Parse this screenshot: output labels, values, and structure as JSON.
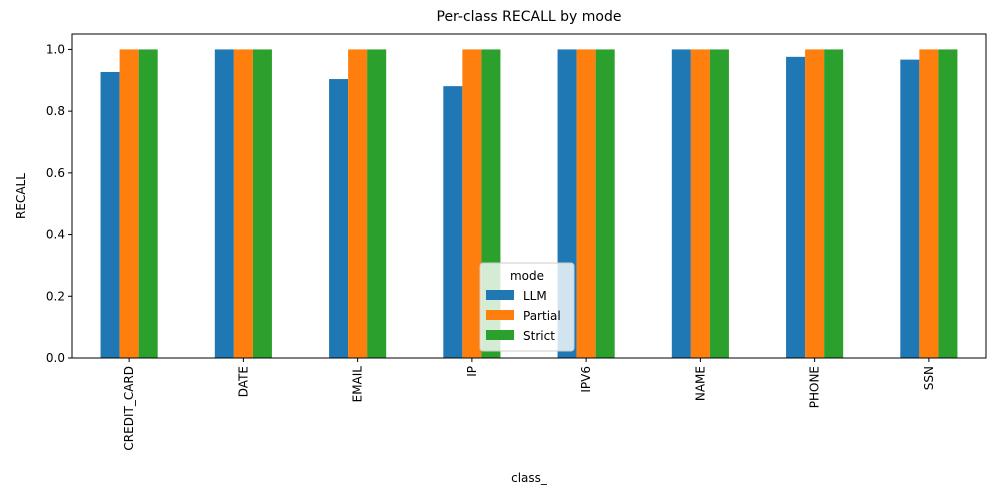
{
  "chart_data": {
    "type": "bar",
    "title": "Per-class RECALL by mode",
    "xlabel": "class_",
    "ylabel": "RECALL",
    "ylim": [
      0,
      1.05
    ],
    "yticks": [
      "0.0",
      "0.2",
      "0.4",
      "0.6",
      "0.8",
      "1.0"
    ],
    "categories": [
      "CREDIT_CARD",
      "DATE",
      "EMAIL",
      "IP",
      "IPV6",
      "NAME",
      "PHONE",
      "SSN"
    ],
    "legend_title": "mode",
    "legend_position": "bottom-center",
    "grid": false,
    "series": [
      {
        "name": "LLM",
        "color": "#1f77b4",
        "values": [
          0.927,
          1.0,
          0.904,
          0.881,
          1.0,
          1.0,
          0.976,
          0.967
        ]
      },
      {
        "name": "Partial",
        "color": "#ff7f0e",
        "values": [
          1.0,
          1.0,
          1.0,
          1.0,
          1.0,
          1.0,
          1.0,
          1.0
        ]
      },
      {
        "name": "Strict",
        "color": "#2ca02c",
        "values": [
          1.0,
          1.0,
          1.0,
          1.0,
          1.0,
          1.0,
          1.0,
          1.0
        ]
      }
    ]
  }
}
